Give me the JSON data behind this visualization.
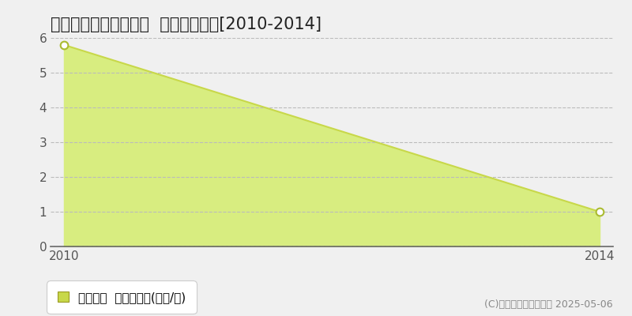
{
  "title": "岡山市東区瀬戸町大内  土地価格推移[2010-2014]",
  "x_values": [
    2010,
    2014
  ],
  "y_values": [
    5.8,
    1.0
  ],
  "xlim": [
    2010,
    2014
  ],
  "ylim": [
    0,
    6
  ],
  "yticks": [
    0,
    1,
    2,
    3,
    4,
    5,
    6
  ],
  "xticks": [
    2010,
    2014
  ],
  "line_color": "#c8d84a",
  "fill_color": "#d8ed80",
  "fill_alpha": 1.0,
  "marker_face_color": "#ffffff",
  "marker_edge_color": "#aabb30",
  "bg_color": "#f0f0f0",
  "plot_bg_color": "#f0f0f0",
  "grid_color": "#bbbbbb",
  "legend_label": "土地価格  平均坪単価(万円/坪)",
  "legend_square_color": "#c8d84a",
  "copyright_text": "(C)土地価格ドットコム 2025-05-06",
  "title_fontsize": 15,
  "tick_fontsize": 11,
  "legend_fontsize": 11,
  "copyright_fontsize": 9,
  "axis_color": "#666666",
  "tick_color": "#555555"
}
